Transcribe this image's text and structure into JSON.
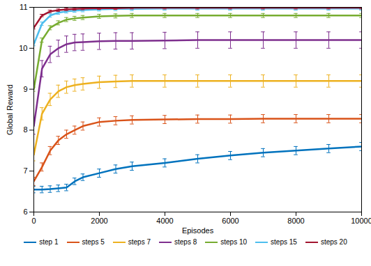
{
  "chart_data": {
    "type": "line",
    "x_label": "Episodes",
    "y_label": "Global Reward",
    "x": [
      0,
      250,
      500,
      750,
      1000,
      1250,
      1500,
      2000,
      2500,
      3000,
      4000,
      5000,
      6000,
      7000,
      8000,
      9000,
      10000
    ],
    "series": [
      {
        "name": "step 1",
        "color": "#0072BD",
        "values": [
          6.55,
          6.55,
          6.56,
          6.58,
          6.6,
          6.75,
          6.85,
          6.95,
          7.05,
          7.12,
          7.2,
          7.3,
          7.38,
          7.45,
          7.5,
          7.55,
          7.6
        ],
        "errors": [
          0.08,
          0.08,
          0.08,
          0.08,
          0.08,
          0.08,
          0.08,
          0.1,
          0.1,
          0.1,
          0.1,
          0.1,
          0.1,
          0.1,
          0.1,
          0.1,
          0.1
        ]
      },
      {
        "name": "steps 5",
        "color": "#D95319",
        "values": [
          6.75,
          7.1,
          7.5,
          7.75,
          7.9,
          8.0,
          8.1,
          8.2,
          8.23,
          8.25,
          8.26,
          8.27,
          8.27,
          8.28,
          8.28,
          8.28,
          8.28
        ],
        "errors": [
          0.1,
          0.1,
          0.1,
          0.1,
          0.1,
          0.1,
          0.1,
          0.1,
          0.1,
          0.1,
          0.1,
          0.1,
          0.1,
          0.1,
          0.1,
          0.1,
          0.1
        ]
      },
      {
        "name": "steps 7",
        "color": "#EDB120",
        "values": [
          7.4,
          8.4,
          8.75,
          8.95,
          9.05,
          9.1,
          9.13,
          9.17,
          9.19,
          9.2,
          9.2,
          9.2,
          9.2,
          9.2,
          9.2,
          9.2,
          9.2
        ],
        "errors": [
          0.15,
          0.15,
          0.15,
          0.15,
          0.15,
          0.15,
          0.15,
          0.15,
          0.15,
          0.15,
          0.15,
          0.15,
          0.15,
          0.15,
          0.15,
          0.15,
          0.15
        ]
      },
      {
        "name": "steps 8",
        "color": "#7E2F8E",
        "values": [
          8.1,
          9.5,
          9.85,
          10.0,
          10.1,
          10.14,
          10.15,
          10.17,
          10.18,
          10.18,
          10.19,
          10.2,
          10.2,
          10.2,
          10.2,
          10.2,
          10.2
        ],
        "errors": [
          0.2,
          0.2,
          0.2,
          0.2,
          0.2,
          0.2,
          0.2,
          0.2,
          0.2,
          0.2,
          0.2,
          0.2,
          0.2,
          0.2,
          0.2,
          0.2,
          0.2
        ]
      },
      {
        "name": "steps 10",
        "color": "#77AC30",
        "values": [
          9.0,
          10.2,
          10.5,
          10.62,
          10.7,
          10.73,
          10.75,
          10.78,
          10.79,
          10.8,
          10.8,
          10.8,
          10.8,
          10.8,
          10.8,
          10.8,
          10.8
        ],
        "errors": [
          0.05,
          0.05,
          0.05,
          0.05,
          0.05,
          0.05,
          0.05,
          0.05,
          0.05,
          0.05,
          0.05,
          0.05,
          0.05,
          0.05,
          0.05,
          0.05,
          0.05
        ]
      },
      {
        "name": "steps 15",
        "color": "#4DBEEE",
        "values": [
          10.1,
          10.6,
          10.8,
          10.87,
          10.9,
          10.92,
          10.93,
          10.95,
          10.96,
          10.96,
          10.97,
          10.97,
          10.97,
          10.97,
          10.97,
          10.97,
          10.97
        ],
        "errors": [
          0.04,
          0.04,
          0.04,
          0.04,
          0.04,
          0.04,
          0.04,
          0.04,
          0.04,
          0.04,
          0.04,
          0.04,
          0.04,
          0.04,
          0.04,
          0.04,
          0.04
        ]
      },
      {
        "name": "steps 20",
        "color": "#A2142F",
        "values": [
          10.5,
          10.8,
          10.9,
          10.93,
          10.95,
          10.96,
          10.97,
          10.98,
          10.98,
          10.99,
          10.99,
          10.99,
          10.99,
          10.99,
          10.99,
          10.99,
          10.99
        ],
        "errors": [
          0.03,
          0.03,
          0.03,
          0.03,
          0.03,
          0.03,
          0.03,
          0.03,
          0.03,
          0.03,
          0.03,
          0.03,
          0.03,
          0.03,
          0.03,
          0.03,
          0.03
        ]
      }
    ],
    "reference_line": {
      "value": 11,
      "color": "#000000",
      "line_style": "dashed"
    },
    "xlim": [
      0,
      10000
    ],
    "xticks": [
      0,
      2000,
      4000,
      6000,
      8000,
      10000
    ],
    "ylim": [
      6,
      11
    ],
    "yticks": [
      6,
      7,
      8,
      9,
      10,
      11
    ],
    "grid": false,
    "legend": "bottom"
  }
}
